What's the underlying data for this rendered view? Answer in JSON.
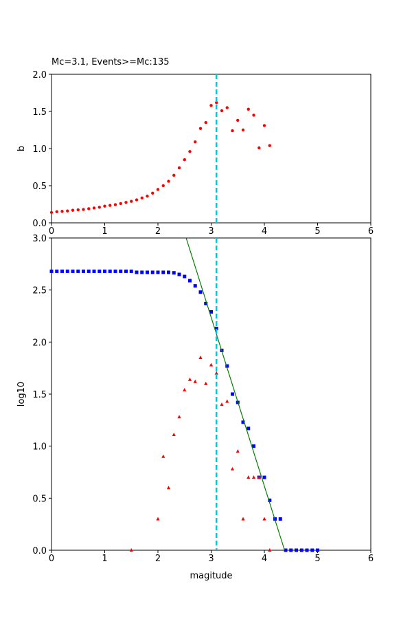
{
  "chart_data": [
    {
      "type": "scatter",
      "title": "Mc=3.1, Events>=Mc:135",
      "ylabel": "b",
      "xlim": [
        0,
        6
      ],
      "ylim": [
        0,
        2
      ],
      "xticks": [
        0,
        1,
        2,
        3,
        4,
        5,
        6
      ],
      "yticks": [
        {
          "value": 0,
          "label": "0.0"
        },
        {
          "value": 0.5,
          "label": "0.5"
        },
        {
          "value": 1,
          "label": "1.0"
        },
        {
          "value": 1.5,
          "label": "1.5"
        },
        {
          "value": 2,
          "label": "2.0"
        }
      ],
      "vline": {
        "x": 3.1,
        "color": "#17becf",
        "style": "dashed"
      },
      "series": [
        {
          "color": "#ff0000",
          "marker": "circle",
          "x": [
            0.0,
            0.1,
            0.2,
            0.3,
            0.4,
            0.5,
            0.6,
            0.7,
            0.8,
            0.9,
            1.0,
            1.1,
            1.2,
            1.3,
            1.4,
            1.5,
            1.6,
            1.7,
            1.8,
            1.9,
            2.0,
            2.1,
            2.2,
            2.3,
            2.4,
            2.5,
            2.6,
            2.7,
            2.8,
            2.9,
            3.0,
            3.1,
            3.2,
            3.3,
            3.4,
            3.5,
            3.6,
            3.7,
            3.8,
            3.9,
            4.0,
            4.1
          ],
          "values": [
            0.14,
            0.15,
            0.155,
            0.16,
            0.17,
            0.175,
            0.18,
            0.19,
            0.2,
            0.21,
            0.225,
            0.235,
            0.245,
            0.26,
            0.275,
            0.29,
            0.31,
            0.335,
            0.36,
            0.4,
            0.45,
            0.5,
            0.56,
            0.64,
            0.74,
            0.85,
            0.96,
            1.09,
            1.27,
            1.35,
            1.58,
            1.62,
            1.51,
            1.55,
            1.24,
            1.38,
            1.25,
            1.53,
            1.45,
            1.01,
            1.31,
            1.04
          ]
        }
      ]
    },
    {
      "type": "scatter",
      "xlabel": "magitude",
      "ylabel": "log10",
      "xlim": [
        0,
        6
      ],
      "ylim": [
        0,
        3
      ],
      "xticks": [
        0,
        1,
        2,
        3,
        4,
        5,
        6
      ],
      "yticks": [
        {
          "value": 0,
          "label": "0.0"
        },
        {
          "value": 0.5,
          "label": "0.5"
        },
        {
          "value": 1,
          "label": "1.0"
        },
        {
          "value": 1.5,
          "label": "1.5"
        },
        {
          "value": 2,
          "label": "2.0"
        },
        {
          "value": 2.5,
          "label": "2.5"
        },
        {
          "value": 3,
          "label": "3.0"
        }
      ],
      "vline": {
        "x": 3.1,
        "color": "#17becf",
        "style": "dashed"
      },
      "series": [
        {
          "color": "#0000ff",
          "marker": "square",
          "x": [
            0.0,
            0.1,
            0.2,
            0.3,
            0.4,
            0.5,
            0.6,
            0.7,
            0.8,
            0.9,
            1.0,
            1.1,
            1.2,
            1.3,
            1.4,
            1.5,
            1.6,
            1.7,
            1.8,
            1.9,
            2.0,
            2.1,
            2.2,
            2.3,
            2.4,
            2.5,
            2.6,
            2.7,
            2.8,
            2.9,
            3.0,
            3.1,
            3.2,
            3.3,
            3.4,
            3.5,
            3.6,
            3.7,
            3.8,
            3.9,
            4.0,
            4.1,
            4.2,
            4.3,
            4.4,
            4.5,
            4.6,
            4.7,
            4.8,
            4.9,
            5.0
          ],
          "values": [
            2.68,
            2.68,
            2.68,
            2.68,
            2.68,
            2.68,
            2.68,
            2.68,
            2.68,
            2.68,
            2.68,
            2.68,
            2.68,
            2.68,
            2.68,
            2.68,
            2.67,
            2.67,
            2.67,
            2.67,
            2.67,
            2.67,
            2.67,
            2.665,
            2.65,
            2.63,
            2.59,
            2.54,
            2.48,
            2.37,
            2.29,
            2.13,
            1.92,
            1.77,
            1.5,
            1.42,
            1.23,
            1.17,
            1.0,
            0.7,
            0.7,
            0.48,
            0.3,
            0.3,
            0,
            0,
            0,
            0,
            0,
            0,
            0
          ]
        },
        {
          "color": "#ff0000",
          "marker": "triangle",
          "x": [
            1.5,
            2.0,
            2.1,
            2.2,
            2.3,
            2.4,
            2.5,
            2.6,
            2.7,
            2.8,
            2.9,
            3.0,
            3.1,
            3.2,
            3.3,
            3.4,
            3.5,
            3.6,
            3.7,
            3.8,
            3.9,
            4.0,
            4.1
          ],
          "values": [
            0,
            0.3,
            0.9,
            0.6,
            1.11,
            1.28,
            1.54,
            1.64,
            1.62,
            1.85,
            1.6,
            1.78,
            1.7,
            1.4,
            1.43,
            0.78,
            0.95,
            0.3,
            0.7,
            0.7,
            0.7,
            0.3,
            0
          ]
        },
        {
          "color": "#008000",
          "marker": "line",
          "x": [
            2.53,
            4.38
          ],
          "values": [
            3,
            0
          ]
        }
      ]
    }
  ]
}
